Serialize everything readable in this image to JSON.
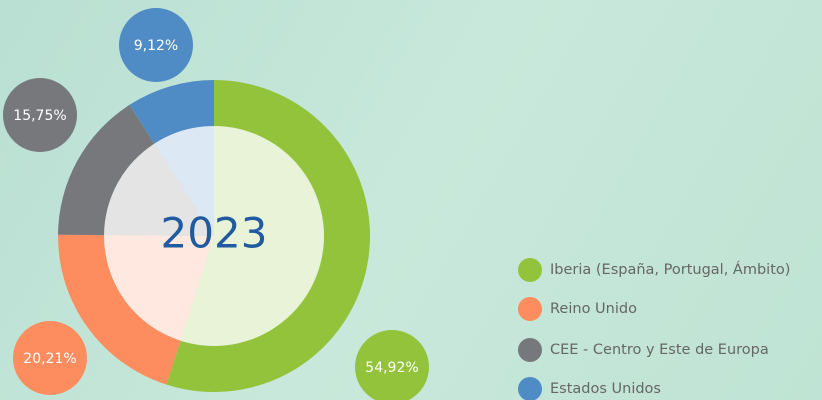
{
  "chart_data": {
    "type": "donut",
    "title": "2023",
    "categories": [
      "Iberia (España, Portugal, Ámbito)",
      "Reino Unido",
      "CEE - Centro y Este de Europa",
      "Estados Unidos"
    ],
    "values": [
      54.92,
      20.21,
      15.75,
      9.12
    ],
    "value_labels": [
      "54,92%",
      "20,21%",
      "15,75%",
      "9,12%"
    ],
    "colors": [
      "#93c33a",
      "#fd8c5e",
      "#77787b",
      "#4f8bc4"
    ],
    "legend": "right"
  }
}
